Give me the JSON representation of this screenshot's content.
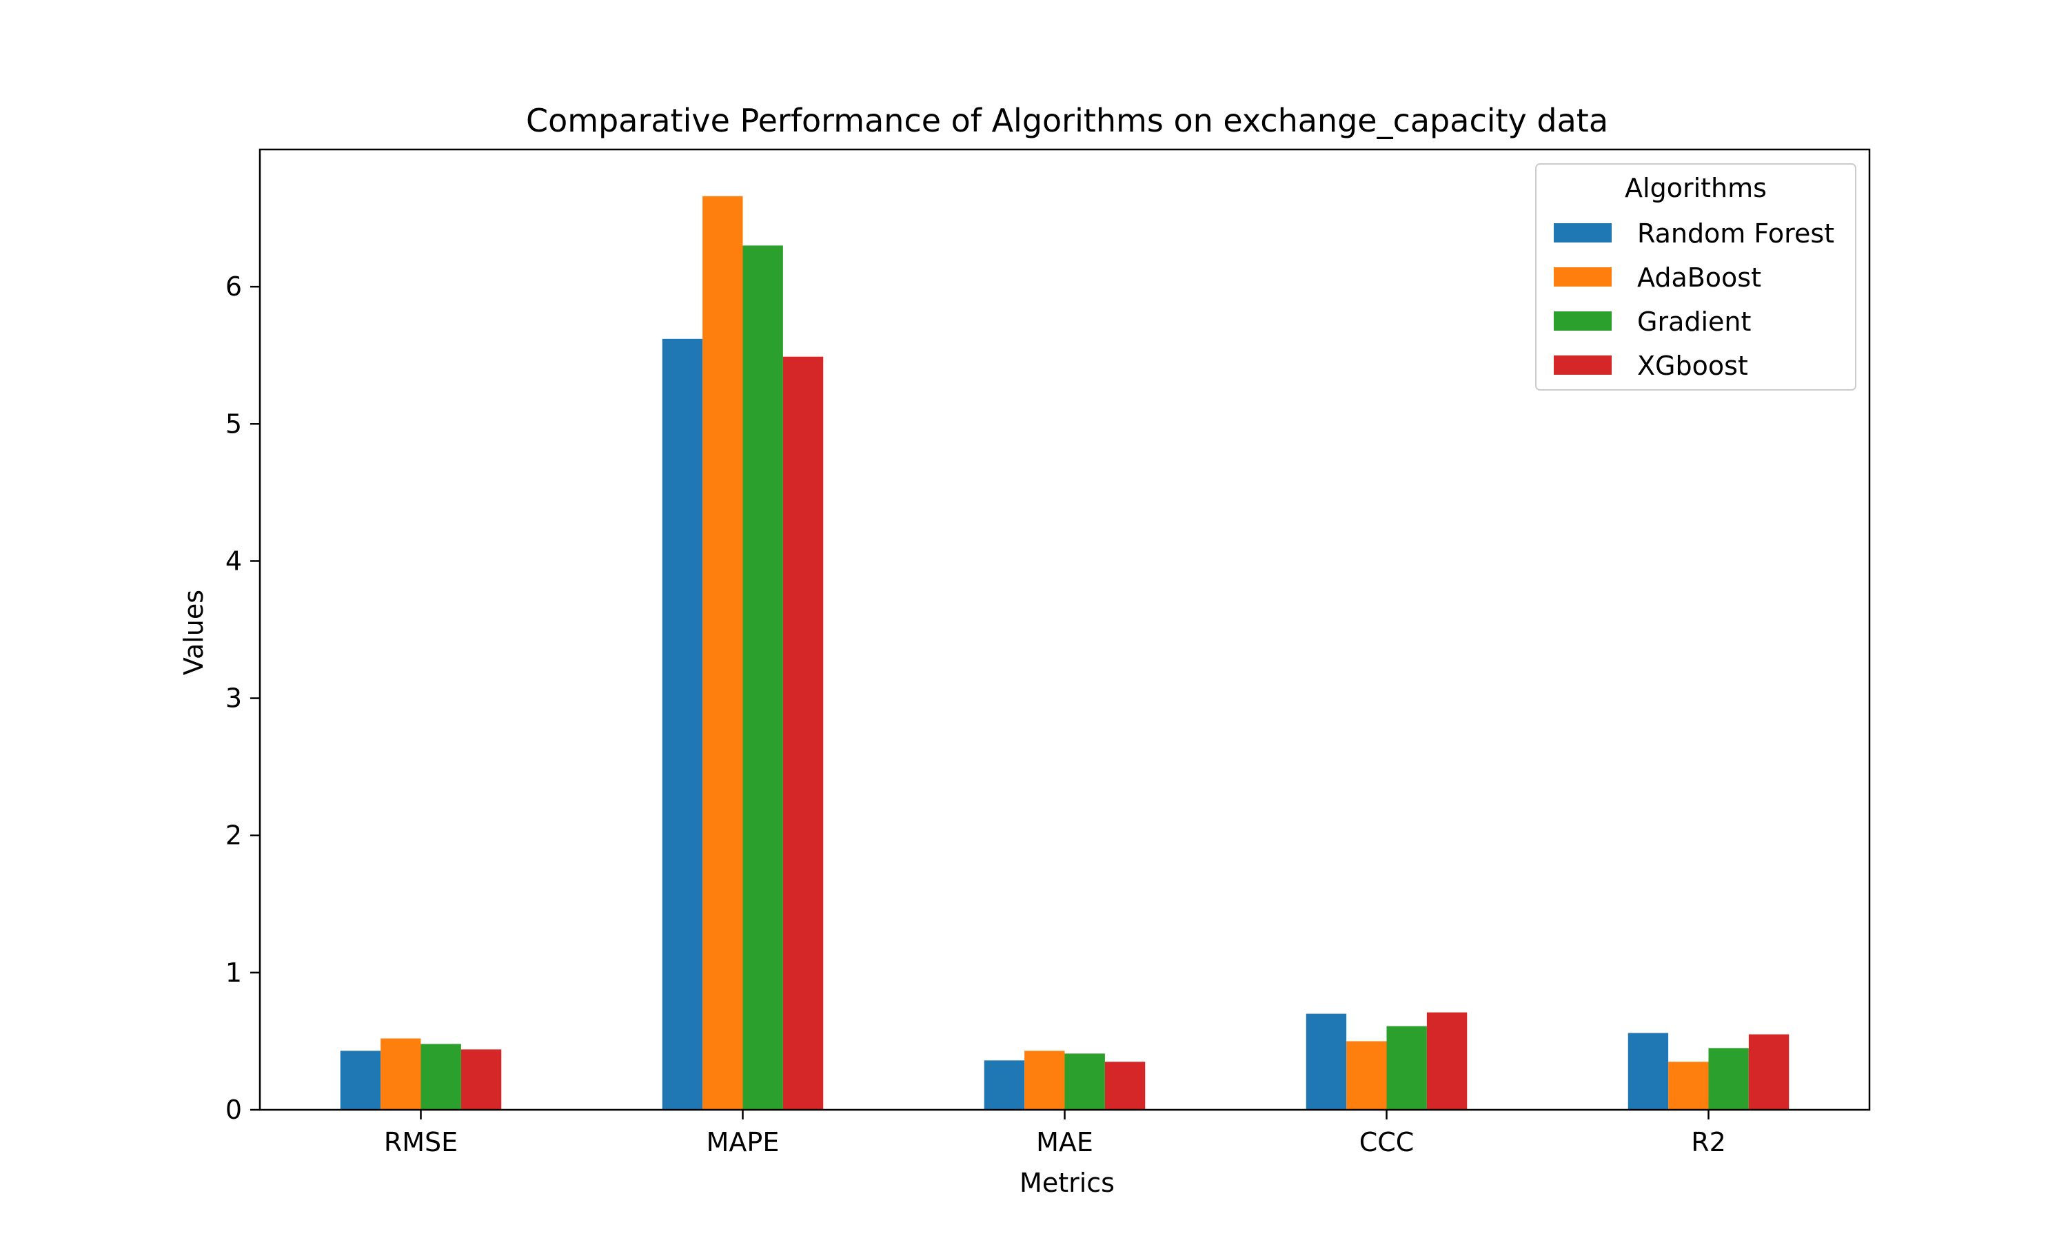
{
  "chart_data": {
    "type": "bar",
    "title": "Comparative Performance of Algorithms on exchange_capacity data",
    "xlabel": "Metrics",
    "ylabel": "Values",
    "categories": [
      "RMSE",
      "MAPE",
      "MAE",
      "CCC",
      "R2"
    ],
    "ylim": [
      0,
      7
    ],
    "yticks": [
      0,
      1,
      2,
      3,
      4,
      5,
      6
    ],
    "grid": false,
    "legend": {
      "title": "Algorithms",
      "placement": "top-right"
    },
    "series": [
      {
        "name": "Random Forest",
        "color": "#1f77b4",
        "values": [
          0.43,
          5.62,
          0.36,
          0.7,
          0.56
        ]
      },
      {
        "name": "AdaBoost",
        "color": "#ff7f0e",
        "values": [
          0.52,
          6.66,
          0.43,
          0.5,
          0.35
        ]
      },
      {
        "name": "Gradient",
        "color": "#2ca02c",
        "values": [
          0.48,
          6.3,
          0.41,
          0.61,
          0.45
        ]
      },
      {
        "name": "XGboost",
        "color": "#d62728",
        "values": [
          0.44,
          5.49,
          0.35,
          0.71,
          0.55
        ]
      }
    ]
  }
}
